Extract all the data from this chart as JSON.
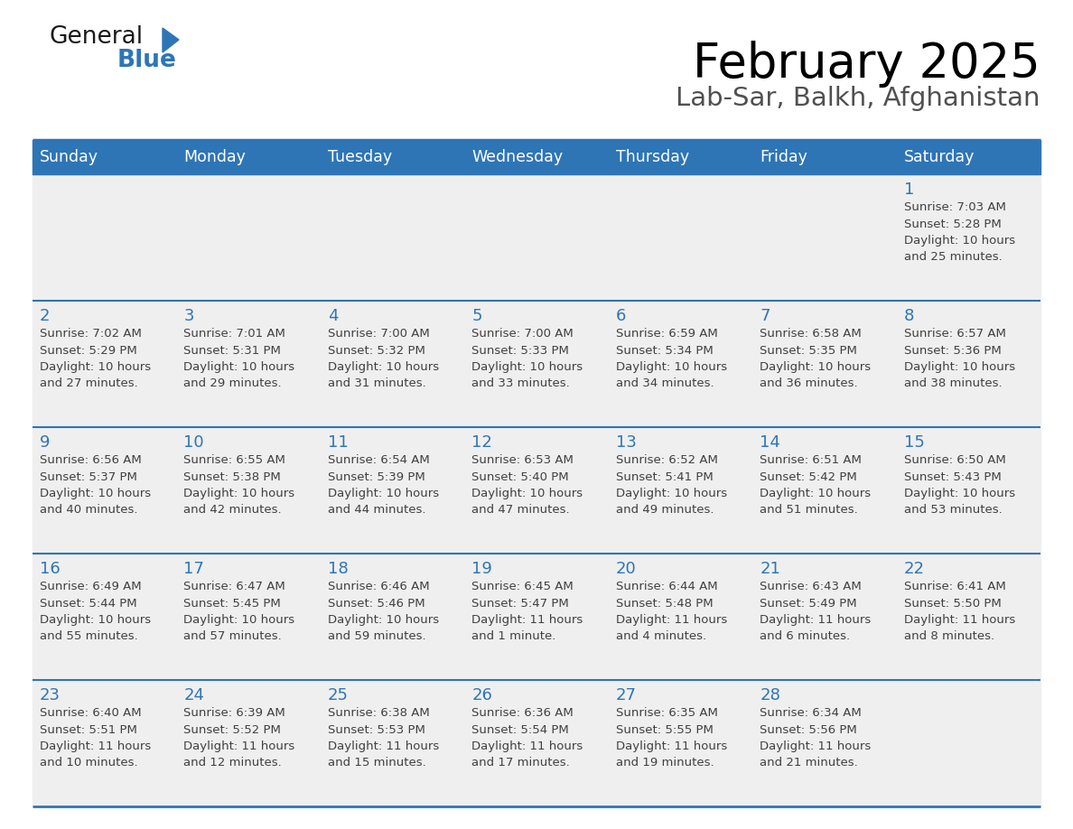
{
  "title": "February 2025",
  "subtitle": "Lab-Sar, Balkh, Afghanistan",
  "header_bg": "#2E75B6",
  "header_text_color": "#FFFFFF",
  "cell_bg": "#EFEFEF",
  "day_number_color": "#2E75B6",
  "info_text_color": "#404040",
  "border_color": "#2E75B6",
  "weekdays": [
    "Sunday",
    "Monday",
    "Tuesday",
    "Wednesday",
    "Thursday",
    "Friday",
    "Saturday"
  ],
  "weeks": [
    [
      {
        "day": null,
        "info": ""
      },
      {
        "day": null,
        "info": ""
      },
      {
        "day": null,
        "info": ""
      },
      {
        "day": null,
        "info": ""
      },
      {
        "day": null,
        "info": ""
      },
      {
        "day": null,
        "info": ""
      },
      {
        "day": 1,
        "info": "Sunrise: 7:03 AM\nSunset: 5:28 PM\nDaylight: 10 hours\nand 25 minutes."
      }
    ],
    [
      {
        "day": 2,
        "info": "Sunrise: 7:02 AM\nSunset: 5:29 PM\nDaylight: 10 hours\nand 27 minutes."
      },
      {
        "day": 3,
        "info": "Sunrise: 7:01 AM\nSunset: 5:31 PM\nDaylight: 10 hours\nand 29 minutes."
      },
      {
        "day": 4,
        "info": "Sunrise: 7:00 AM\nSunset: 5:32 PM\nDaylight: 10 hours\nand 31 minutes."
      },
      {
        "day": 5,
        "info": "Sunrise: 7:00 AM\nSunset: 5:33 PM\nDaylight: 10 hours\nand 33 minutes."
      },
      {
        "day": 6,
        "info": "Sunrise: 6:59 AM\nSunset: 5:34 PM\nDaylight: 10 hours\nand 34 minutes."
      },
      {
        "day": 7,
        "info": "Sunrise: 6:58 AM\nSunset: 5:35 PM\nDaylight: 10 hours\nand 36 minutes."
      },
      {
        "day": 8,
        "info": "Sunrise: 6:57 AM\nSunset: 5:36 PM\nDaylight: 10 hours\nand 38 minutes."
      }
    ],
    [
      {
        "day": 9,
        "info": "Sunrise: 6:56 AM\nSunset: 5:37 PM\nDaylight: 10 hours\nand 40 minutes."
      },
      {
        "day": 10,
        "info": "Sunrise: 6:55 AM\nSunset: 5:38 PM\nDaylight: 10 hours\nand 42 minutes."
      },
      {
        "day": 11,
        "info": "Sunrise: 6:54 AM\nSunset: 5:39 PM\nDaylight: 10 hours\nand 44 minutes."
      },
      {
        "day": 12,
        "info": "Sunrise: 6:53 AM\nSunset: 5:40 PM\nDaylight: 10 hours\nand 47 minutes."
      },
      {
        "day": 13,
        "info": "Sunrise: 6:52 AM\nSunset: 5:41 PM\nDaylight: 10 hours\nand 49 minutes."
      },
      {
        "day": 14,
        "info": "Sunrise: 6:51 AM\nSunset: 5:42 PM\nDaylight: 10 hours\nand 51 minutes."
      },
      {
        "day": 15,
        "info": "Sunrise: 6:50 AM\nSunset: 5:43 PM\nDaylight: 10 hours\nand 53 minutes."
      }
    ],
    [
      {
        "day": 16,
        "info": "Sunrise: 6:49 AM\nSunset: 5:44 PM\nDaylight: 10 hours\nand 55 minutes."
      },
      {
        "day": 17,
        "info": "Sunrise: 6:47 AM\nSunset: 5:45 PM\nDaylight: 10 hours\nand 57 minutes."
      },
      {
        "day": 18,
        "info": "Sunrise: 6:46 AM\nSunset: 5:46 PM\nDaylight: 10 hours\nand 59 minutes."
      },
      {
        "day": 19,
        "info": "Sunrise: 6:45 AM\nSunset: 5:47 PM\nDaylight: 11 hours\nand 1 minute."
      },
      {
        "day": 20,
        "info": "Sunrise: 6:44 AM\nSunset: 5:48 PM\nDaylight: 11 hours\nand 4 minutes."
      },
      {
        "day": 21,
        "info": "Sunrise: 6:43 AM\nSunset: 5:49 PM\nDaylight: 11 hours\nand 6 minutes."
      },
      {
        "day": 22,
        "info": "Sunrise: 6:41 AM\nSunset: 5:50 PM\nDaylight: 11 hours\nand 8 minutes."
      }
    ],
    [
      {
        "day": 23,
        "info": "Sunrise: 6:40 AM\nSunset: 5:51 PM\nDaylight: 11 hours\nand 10 minutes."
      },
      {
        "day": 24,
        "info": "Sunrise: 6:39 AM\nSunset: 5:52 PM\nDaylight: 11 hours\nand 12 minutes."
      },
      {
        "day": 25,
        "info": "Sunrise: 6:38 AM\nSunset: 5:53 PM\nDaylight: 11 hours\nand 15 minutes."
      },
      {
        "day": 26,
        "info": "Sunrise: 6:36 AM\nSunset: 5:54 PM\nDaylight: 11 hours\nand 17 minutes."
      },
      {
        "day": 27,
        "info": "Sunrise: 6:35 AM\nSunset: 5:55 PM\nDaylight: 11 hours\nand 19 minutes."
      },
      {
        "day": 28,
        "info": "Sunrise: 6:34 AM\nSunset: 5:56 PM\nDaylight: 11 hours\nand 21 minutes."
      },
      {
        "day": null,
        "info": ""
      }
    ]
  ]
}
